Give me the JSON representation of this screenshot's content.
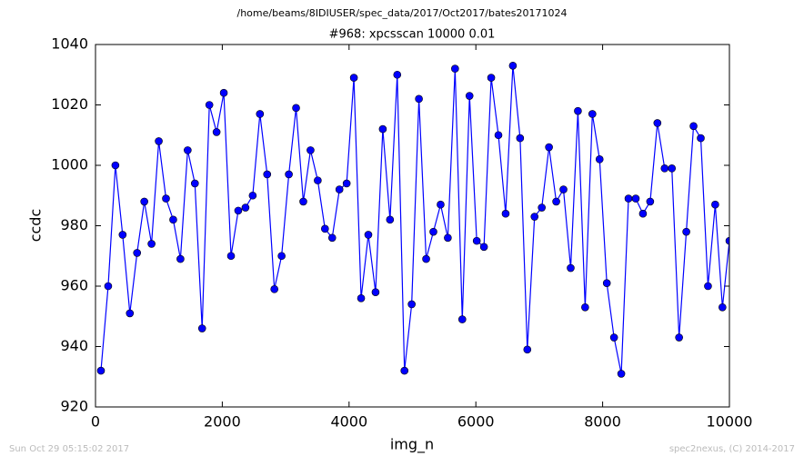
{
  "chart_data": {
    "type": "line",
    "suptitle": "/home/beams/8IDIUSER/spec_data/2017/Oct2017/bates20171024",
    "title": "#968: xpcsscan 10000 0.01",
    "xlabel": "img_n",
    "ylabel": "ccdc",
    "footer_left": "Sun Oct 29 05:15:02 2017",
    "footer_right": "spec2nexus, (C) 2014-2017",
    "xlim": [
      0,
      10000
    ],
    "xticks": [
      0,
      2000,
      4000,
      6000,
      8000,
      10000
    ],
    "ylim": [
      920,
      1040
    ],
    "yticks": [
      920,
      940,
      960,
      980,
      1000,
      1020,
      1040
    ],
    "grid": false,
    "series": [
      {
        "color": "#0000ff",
        "x": [
          86,
          200,
          314,
          428,
          542,
          656,
          770,
          884,
          998,
          1112,
          1226,
          1340,
          1454,
          1568,
          1682,
          1796,
          1910,
          2024,
          2138,
          2252,
          2366,
          2480,
          2594,
          2708,
          2822,
          2936,
          3050,
          3164,
          3278,
          3392,
          3506,
          3620,
          3734,
          3848,
          3962,
          4076,
          4190,
          4304,
          4418,
          4532,
          4646,
          4760,
          4874,
          4988,
          5102,
          5216,
          5330,
          5444,
          5558,
          5672,
          5786,
          5900,
          6014,
          6128,
          6242,
          6356,
          6470,
          6584,
          6698,
          6812,
          6926,
          7040,
          7154,
          7268,
          7382,
          7496,
          7610,
          7724,
          7838,
          7952,
          8066,
          8180,
          8294,
          8408,
          8522,
          8636,
          8750,
          8864,
          8978,
          9092,
          9206,
          9320,
          9434,
          9548,
          9662,
          9776,
          9890,
          10000
        ],
        "values": [
          932,
          960,
          1000,
          977,
          951,
          971,
          988,
          974,
          1008,
          989,
          982,
          969,
          1005,
          994,
          946,
          1020,
          1011,
          1024,
          970,
          985,
          986,
          990,
          1017,
          997,
          959,
          970,
          997,
          1019,
          988,
          1005,
          995,
          979,
          976,
          992,
          994,
          1029,
          956,
          977,
          958,
          1012,
          982,
          1030,
          932,
          954,
          1022,
          969,
          978,
          987,
          976,
          1032,
          949,
          1023,
          975,
          973,
          1029,
          1010,
          984,
          1033,
          1009,
          939,
          983,
          986,
          1006,
          988,
          992,
          966,
          1018,
          953,
          1017,
          1002,
          961,
          943,
          931,
          989,
          989,
          984,
          988,
          1014,
          999,
          999,
          943,
          978,
          1013,
          1009,
          960,
          987,
          953,
          975
        ]
      }
    ]
  }
}
